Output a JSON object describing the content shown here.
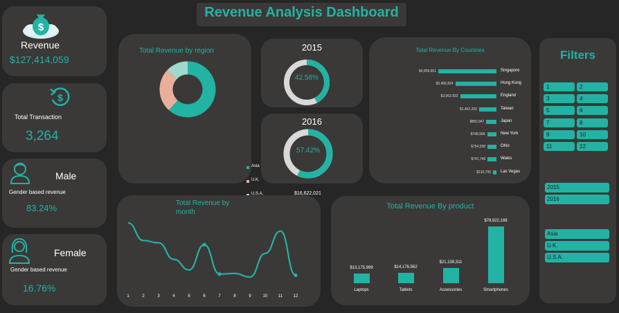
{
  "title": "Revenue Analysis Dashboard",
  "kpis": {
    "revenue_label": "Revenue",
    "revenue_value": "$127,414,059",
    "transaction_label": "Total Transaction",
    "transaction_value": "3,264",
    "male_title": "Male",
    "male_sub": "Gender based revenue",
    "male_value": "83.24%",
    "female_title": "Female",
    "female_sub": "Gender based revenue",
    "female_value": "16.76%"
  },
  "region": {
    "title": "Total Revenue by region",
    "items": [
      {
        "name": "Asia",
        "value": "$78,652,364",
        "color": "#22b3a4"
      },
      {
        "name": "U.K.",
        "value": "$32,139,674",
        "color": "#e8b09a"
      },
      {
        "name": "U.S.A.",
        "value": "$16,622,021",
        "color": "#9fd8cd"
      }
    ]
  },
  "years": [
    {
      "label": "2015",
      "pct": "42.58%",
      "fraction": 0.4258
    },
    {
      "label": "2016",
      "pct": "57.42%",
      "fraction": 0.5742
    }
  ],
  "countries": {
    "title": "Total Revenue By Countries",
    "items": [
      {
        "name": "Singapore",
        "value": "$4,909,651",
        "amount": 4909651
      },
      {
        "name": "Hong Kong",
        "value": "$3,466,824",
        "amount": 3466824
      },
      {
        "name": "England",
        "value": "$3,063,922",
        "amount": 3063922
      },
      {
        "name": "Taiwan",
        "value": "$1,462,202",
        "amount": 1462202
      },
      {
        "name": "Japan",
        "value": "$850,947",
        "amount": 850947
      },
      {
        "name": "New York",
        "value": "$788,968",
        "amount": 788968
      },
      {
        "name": "Ohio",
        "value": "$754,538",
        "amount": 754538
      },
      {
        "name": "Wales",
        "value": "$741,746",
        "amount": 741746
      },
      {
        "name": "Las Vegas",
        "value": "$210,795",
        "amount": 210795
      }
    ]
  },
  "month_chart": {
    "title_line1": "Total Revenue by",
    "title_line2": "month",
    "months": [
      "1",
      "2",
      "3",
      "4",
      "5",
      "6",
      "7",
      "8",
      "9",
      "10",
      "11",
      "12"
    ]
  },
  "product": {
    "title": "Total  Revenue By product",
    "items": [
      {
        "name": "Laptops",
        "value": "$13,175,999",
        "amount": 13175999
      },
      {
        "name": "Tablets",
        "value": "$14,176,562",
        "amount": 14176562
      },
      {
        "name": "Assessories",
        "value": "$21,139,311",
        "amount": 21139311
      },
      {
        "name": "Smartphones",
        "value": "$78,922,188",
        "amount": 78922188
      }
    ]
  },
  "filters": {
    "title": "Filters",
    "months": [
      "1",
      "2",
      "3",
      "4",
      "5",
      "6",
      "7",
      "8",
      "9",
      "10",
      "11",
      "12"
    ],
    "years": [
      "2015",
      "2016"
    ],
    "regions": [
      "Asia",
      "U.K.",
      "U.S.A."
    ]
  },
  "chart_data": {
    "type": "line",
    "x": [
      1,
      2,
      3,
      4,
      5,
      6,
      7,
      8,
      9,
      10,
      11,
      12
    ],
    "y": [
      0.92,
      0.62,
      0.58,
      0.3,
      0.12,
      0.55,
      0.05,
      0.06,
      0.0,
      0.4,
      0.78,
      0.03
    ],
    "xlabel": "",
    "ylabel": ""
  }
}
